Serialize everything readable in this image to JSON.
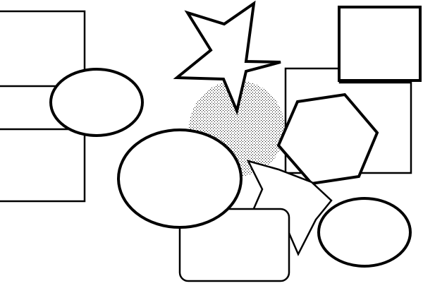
{
  "diagram": {
    "background_color": "#ffffff",
    "stroke_color": "#000000",
    "fill_color": "#ffffff",
    "stipple_color": "#000000",
    "shapes": [
      {
        "type": "rectangle",
        "name": "rectangle"
      },
      {
        "type": "rectangle",
        "name": "rectangle"
      },
      {
        "type": "rectangle",
        "name": "rectangle"
      },
      {
        "type": "rectangle",
        "name": "rectangle"
      },
      {
        "type": "rounded-rectangle",
        "name": "rounded-rectangle"
      },
      {
        "type": "ellipse",
        "name": "ellipse"
      },
      {
        "type": "ellipse",
        "name": "ellipse"
      },
      {
        "type": "ellipse",
        "name": "ellipse"
      },
      {
        "type": "stippled-circle",
        "name": "stippled-circle"
      },
      {
        "type": "star",
        "name": "star"
      },
      {
        "type": "star",
        "name": "star"
      },
      {
        "type": "hexagon",
        "name": "hexagon"
      }
    ]
  }
}
